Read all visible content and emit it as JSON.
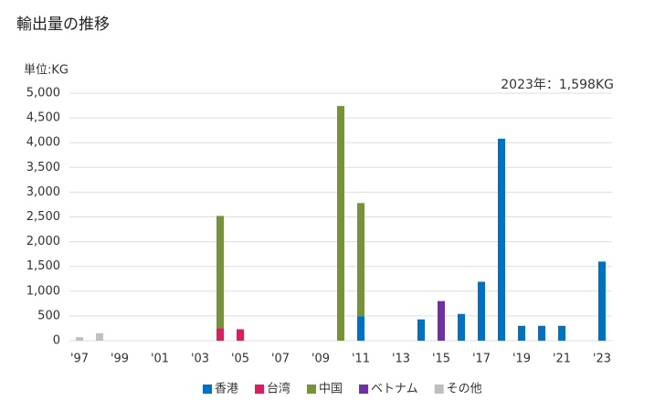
{
  "chart_data": {
    "type": "bar",
    "stacked": true,
    "title": "輸出量の推移",
    "unit_label": "単位:KG",
    "annotation": "2023年：1,598KG",
    "categories": [
      "'97",
      null,
      "'99",
      null,
      "'01",
      null,
      "'03",
      null,
      "'05",
      null,
      "'07",
      null,
      "'09",
      null,
      "'11",
      null,
      "'13",
      null,
      "'15",
      null,
      "'17",
      null,
      "'19",
      null,
      "'21",
      null,
      "'23"
    ],
    "series": [
      {
        "name": "香港",
        "color": "#0070c0",
        "values": [
          null,
          null,
          null,
          null,
          null,
          null,
          null,
          null,
          null,
          null,
          null,
          null,
          null,
          null,
          490,
          null,
          null,
          430,
          null,
          540,
          1190,
          4080,
          300,
          300,
          300,
          null,
          1598
        ]
      },
      {
        "name": "台湾",
        "color": "#d6215f",
        "values": [
          null,
          null,
          null,
          null,
          null,
          null,
          null,
          250,
          230,
          null,
          null,
          null,
          null,
          null,
          null,
          null,
          null,
          null,
          null,
          null,
          null,
          null,
          null,
          null,
          null,
          null,
          null
        ]
      },
      {
        "name": "中国",
        "color": "#76933c",
        "values": [
          null,
          null,
          null,
          null,
          null,
          null,
          null,
          2270,
          null,
          null,
          null,
          null,
          null,
          4740,
          2290,
          null,
          null,
          null,
          null,
          null,
          null,
          null,
          null,
          null,
          null,
          null,
          null
        ]
      },
      {
        "name": "ベトナム",
        "color": "#7030a0",
        "values": [
          null,
          null,
          null,
          null,
          null,
          null,
          null,
          null,
          null,
          null,
          null,
          null,
          null,
          null,
          null,
          null,
          null,
          null,
          800,
          null,
          null,
          null,
          null,
          null,
          null,
          null,
          null
        ]
      },
      {
        "name": "その他",
        "color": "#bfbfbf",
        "values": [
          70,
          150,
          null,
          null,
          null,
          null,
          null,
          null,
          null,
          null,
          null,
          null,
          null,
          null,
          null,
          null,
          null,
          null,
          null,
          null,
          null,
          null,
          null,
          null,
          null,
          null,
          null
        ]
      }
    ],
    "ylim": [
      0,
      5000
    ],
    "yticks": [
      0,
      500,
      {
        "value": 1000,
        "label": "1,000"
      },
      {
        "value": 1500,
        "label": "1,500"
      },
      {
        "value": 2000,
        "label": "2,000"
      },
      {
        "value": 2500,
        "label": "2,500"
      },
      {
        "value": 3000,
        "label": "3,000"
      },
      {
        "value": 3500,
        "label": "3,500"
      },
      {
        "value": 4000,
        "label": "4,000"
      },
      {
        "value": 4500,
        "label": "4,500"
      },
      {
        "value": 5000,
        "label": "5,000"
      }
    ],
    "grid": true
  }
}
